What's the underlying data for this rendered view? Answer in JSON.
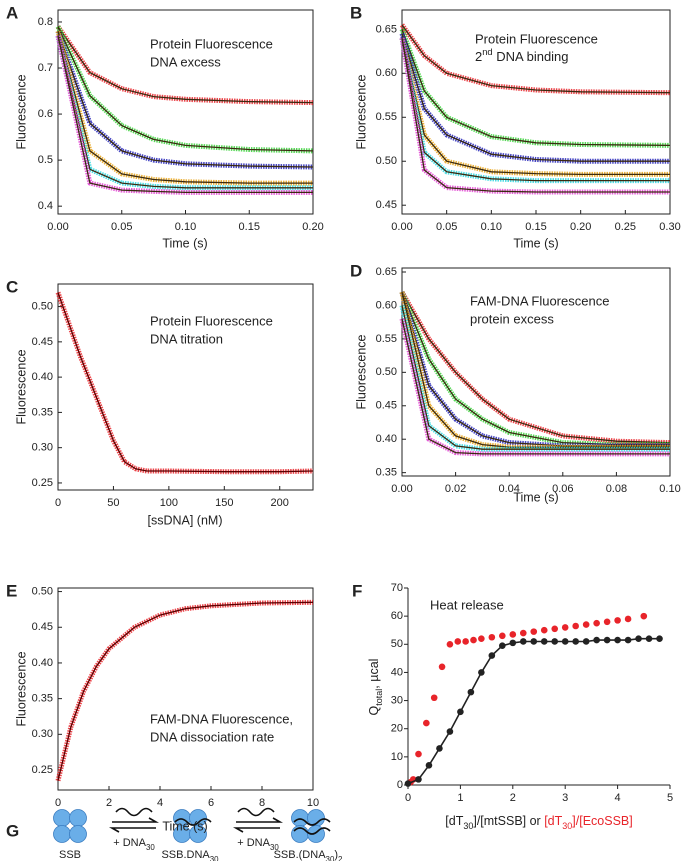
{
  "chart_data": [
    {
      "type": "line",
      "panel": "A",
      "style": "scatter-line",
      "frame": true,
      "fit_color": "#3a2a10",
      "annotation": [
        "Protein Fluorescence",
        "DNA excess"
      ],
      "x_label": "Time (s)",
      "y_label": "Fluorescence",
      "xlim": [
        0,
        0.2
      ],
      "ylim": [
        0.383,
        0.826
      ],
      "xticks": [
        {
          "value": 0,
          "label": "0.00"
        },
        {
          "value": 0.05,
          "label": "0.05"
        },
        {
          "value": 0.1,
          "label": "0.10"
        },
        {
          "value": 0.15,
          "label": "0.15"
        },
        {
          "value": 0.2,
          "label": "0.20"
        }
      ],
      "yticks": [
        0.4,
        0.5,
        0.6,
        0.7,
        0.8
      ],
      "x": [
        0,
        0.025,
        0.05,
        0.075,
        0.1,
        0.15,
        0.2
      ],
      "series": [
        {
          "color": "#e8242a",
          "values": [
            0.79,
            0.69,
            0.655,
            0.638,
            0.632,
            0.627,
            0.625
          ]
        },
        {
          "color": "#3ad13a",
          "values": [
            0.79,
            0.64,
            0.575,
            0.545,
            0.532,
            0.523,
            0.52
          ]
        },
        {
          "color": "#2424b8",
          "values": [
            0.78,
            0.58,
            0.52,
            0.5,
            0.492,
            0.487,
            0.485
          ]
        },
        {
          "color": "#e8a317",
          "values": [
            0.78,
            0.52,
            0.47,
            0.458,
            0.453,
            0.45,
            0.45
          ]
        },
        {
          "color": "#2fd8e0",
          "values": [
            0.77,
            0.48,
            0.45,
            0.443,
            0.44,
            0.44,
            0.44
          ]
        },
        {
          "color": "#e040d0",
          "values": [
            0.77,
            0.45,
            0.435,
            0.432,
            0.43,
            0.43,
            0.43
          ]
        }
      ]
    },
    {
      "type": "line",
      "panel": "B",
      "style": "scatter-line",
      "frame": true,
      "fit_color": "#3a2a10",
      "annotation": [
        "Protein Fluorescence",
        [
          {
            "text": "2"
          },
          {
            "text": "nd",
            "sup": true
          },
          {
            "text": " DNA binding"
          }
        ]
      ],
      "x_label": "Time (s)",
      "y_label": "Fluorescence",
      "xlim": [
        0,
        0.3
      ],
      "ylim": [
        0.44,
        0.672
      ],
      "xticks": [
        {
          "value": 0,
          "label": "0.00"
        },
        {
          "value": 0.05,
          "label": "0.05"
        },
        {
          "value": 0.1,
          "label": "0.10"
        },
        {
          "value": 0.15,
          "label": "0.15"
        },
        {
          "value": 0.2,
          "label": "0.20"
        },
        {
          "value": 0.25,
          "label": "0.25"
        },
        {
          "value": 0.3,
          "label": "0.30"
        }
      ],
      "yticks": [
        0.45,
        {
          "value": 0.5,
          "label": "0.50"
        },
        0.55,
        {
          "value": 0.6,
          "label": "0.60"
        },
        0.65
      ],
      "x": [
        0,
        0.025,
        0.05,
        0.1,
        0.15,
        0.2,
        0.3
      ],
      "series": [
        {
          "color": "#e8242a",
          "values": [
            0.655,
            0.62,
            0.6,
            0.586,
            0.581,
            0.579,
            0.578
          ]
        },
        {
          "color": "#3ad13a",
          "values": [
            0.65,
            0.58,
            0.55,
            0.528,
            0.521,
            0.519,
            0.518
          ]
        },
        {
          "color": "#2424b8",
          "values": [
            0.645,
            0.56,
            0.53,
            0.508,
            0.502,
            0.5,
            0.5
          ]
        },
        {
          "color": "#e8a317",
          "values": [
            0.64,
            0.53,
            0.5,
            0.488,
            0.486,
            0.485,
            0.485
          ]
        },
        {
          "color": "#2fd8e0",
          "values": [
            0.64,
            0.51,
            0.488,
            0.48,
            0.478,
            0.478,
            0.478
          ]
        },
        {
          "color": "#e040d0",
          "values": [
            0.64,
            0.49,
            0.47,
            0.466,
            0.465,
            0.465,
            0.465
          ]
        }
      ]
    },
    {
      "type": "line",
      "panel": "C",
      "style": "scatter-line",
      "frame": true,
      "fit_color": "#5a0000",
      "annotation": [
        "Protein Fluorescence",
        "DNA titration"
      ],
      "x_label": "[ssDNA] (nM)",
      "y_label": "Fluorescence",
      "xlim": [
        0,
        230
      ],
      "ylim": [
        0.24,
        0.532
      ],
      "xticks": [
        0,
        50,
        100,
        150,
        200
      ],
      "yticks": [
        0.25,
        {
          "value": 0.3,
          "label": "0.30"
        },
        0.35,
        {
          "value": 0.4,
          "label": "0.40"
        },
        0.45,
        {
          "value": 0.5,
          "label": "0.50"
        }
      ],
      "x": [
        0,
        10,
        20,
        30,
        40,
        50,
        60,
        70,
        80,
        100,
        150,
        200,
        230
      ],
      "series": [
        {
          "color": "#e8242a",
          "values": [
            0.52,
            0.475,
            0.43,
            0.39,
            0.35,
            0.31,
            0.28,
            0.27,
            0.267,
            0.267,
            0.266,
            0.266,
            0.267
          ]
        }
      ]
    },
    {
      "type": "line",
      "panel": "D",
      "style": "scatter-line",
      "frame": true,
      "fit_color": "#3a2a10",
      "annotation": [
        "FAM-DNA Fluorescence",
        "protein excess"
      ],
      "x_label": "Time (s)",
      "y_label": "Fluorescence",
      "xlim": [
        0,
        0.1
      ],
      "ylim": [
        0.345,
        0.656
      ],
      "xticks": [
        {
          "value": 0,
          "label": "0.00"
        },
        {
          "value": 0.02,
          "label": "0.02"
        },
        {
          "value": 0.04,
          "label": "0.04"
        },
        {
          "value": 0.06,
          "label": "0.06"
        },
        {
          "value": 0.08,
          "label": "0.08"
        },
        {
          "value": 0.1,
          "label": "0.10"
        }
      ],
      "yticks": [
        0.35,
        {
          "value": 0.4,
          "label": "0.40"
        },
        0.45,
        {
          "value": 0.5,
          "label": "0.50"
        },
        0.55,
        {
          "value": 0.6,
          "label": "0.60"
        },
        0.65
      ],
      "x": [
        0,
        0.01,
        0.02,
        0.03,
        0.04,
        0.06,
        0.08,
        0.1
      ],
      "series": [
        {
          "color": "#e8242a",
          "values": [
            0.62,
            0.55,
            0.5,
            0.46,
            0.43,
            0.405,
            0.397,
            0.395
          ]
        },
        {
          "color": "#3ad13a",
          "values": [
            0.62,
            0.52,
            0.46,
            0.43,
            0.41,
            0.395,
            0.392,
            0.392
          ]
        },
        {
          "color": "#2424b8",
          "values": [
            0.62,
            0.48,
            0.43,
            0.405,
            0.395,
            0.39,
            0.39,
            0.39
          ]
        },
        {
          "color": "#e8a317",
          "values": [
            0.62,
            0.45,
            0.405,
            0.392,
            0.388,
            0.388,
            0.388,
            0.388
          ]
        },
        {
          "color": "#2fd8e0",
          "values": [
            0.6,
            0.42,
            0.39,
            0.385,
            0.385,
            0.385,
            0.385,
            0.385
          ]
        },
        {
          "color": "#e040d0",
          "values": [
            0.58,
            0.4,
            0.38,
            0.378,
            0.378,
            0.378,
            0.378,
            0.378
          ]
        }
      ]
    },
    {
      "type": "line",
      "panel": "E",
      "style": "scatter-line",
      "frame": true,
      "fit_color": "#5a0000",
      "annotation": [
        "FAM-DNA Fluorescence,",
        "DNA dissociation rate"
      ],
      "x_label": "Time (s)",
      "y_label": "Fluorescence",
      "xlim": [
        0,
        10
      ],
      "ylim": [
        0.222,
        0.505
      ],
      "xticks": [
        0,
        2,
        4,
        6,
        8,
        10
      ],
      "yticks": [
        0.25,
        {
          "value": 0.3,
          "label": "0.30"
        },
        0.35,
        {
          "value": 0.4,
          "label": "0.40"
        },
        0.45,
        {
          "value": 0.5,
          "label": "0.50"
        }
      ],
      "x": [
        0,
        0.5,
        1,
        1.5,
        2,
        3,
        4,
        5,
        6,
        8,
        10
      ],
      "series": [
        {
          "color": "#e8242a",
          "values": [
            0.235,
            0.31,
            0.36,
            0.395,
            0.42,
            0.45,
            0.467,
            0.476,
            0.48,
            0.484,
            0.485
          ]
        }
      ]
    },
    {
      "type": "scatter",
      "panel": "F",
      "frame": false,
      "annotation": [
        "Heat release"
      ],
      "x_label": [
        {
          "text": "[dT"
        },
        {
          "text": "30",
          "sub": true
        },
        {
          "text": "]/[mtSSB] or "
        },
        {
          "text": "[dT",
          "color": "#e8242a"
        },
        {
          "text": "30",
          "sub": true,
          "color": "#e8242a"
        },
        {
          "text": "]/[EcoSSB]",
          "color": "#e8242a"
        }
      ],
      "y_label": [
        {
          "text": "Q"
        },
        {
          "text": "total",
          "sub": true
        },
        {
          "text": ", µcal"
        }
      ],
      "xlim": [
        0,
        5
      ],
      "ylim": [
        0,
        70
      ],
      "xticks": [
        0,
        1,
        2,
        3,
        4,
        5
      ],
      "yticks": [
        0,
        10,
        20,
        30,
        40,
        50,
        60,
        70
      ],
      "series": [
        {
          "color": "#e8242a",
          "mode": "markers",
          "x": [
            0.05,
            0.1,
            0.2,
            0.35,
            0.5,
            0.65,
            0.8,
            0.95,
            1.1,
            1.25,
            1.4,
            1.6,
            1.8,
            2.0,
            2.2,
            2.4,
            2.6,
            2.8,
            3.0,
            3.2,
            3.4,
            3.6,
            3.8,
            4.0,
            4.2,
            4.5
          ],
          "values": [
            1,
            2,
            11,
            22,
            31,
            42,
            50,
            51,
            51,
            51.5,
            52,
            52.5,
            53,
            53.5,
            54,
            54.5,
            55,
            55.5,
            56,
            56.5,
            57,
            57.5,
            58,
            58.5,
            59,
            60
          ]
        },
        {
          "color": "#222222",
          "mode": "line+markers",
          "x": [
            0,
            0.2,
            0.4,
            0.6,
            0.8,
            1.0,
            1.2,
            1.4,
            1.6,
            1.8,
            2.0,
            2.2,
            2.4,
            2.6,
            2.8,
            3.0,
            3.2,
            3.4,
            3.6,
            3.8,
            4.0,
            4.2,
            4.4,
            4.6,
            4.8
          ],
          "values": [
            0.5,
            2,
            7,
            13,
            19,
            26,
            33,
            40,
            46,
            49.5,
            50.5,
            51,
            51,
            51,
            51,
            51,
            51,
            51,
            51.5,
            51.5,
            51.5,
            51.5,
            52,
            52,
            52
          ]
        }
      ]
    }
  ],
  "diagram": {
    "panel": "G",
    "species": [
      [
        {
          "text": "SSB"
        }
      ],
      [
        {
          "text": "SSB.DNA"
        },
        {
          "text": "30",
          "sub": true
        }
      ],
      [
        {
          "text": "SSB.(DNA"
        },
        {
          "text": "30",
          "sub": true
        },
        {
          "text": ")"
        },
        {
          "text": "2",
          "sub": true
        }
      ]
    ],
    "reagents": [
      [
        {
          "text": "+ DNA"
        },
        {
          "text": "30",
          "sub": true
        }
      ],
      [
        {
          "text": "+ DNA"
        },
        {
          "text": "30",
          "sub": true
        }
      ]
    ]
  }
}
